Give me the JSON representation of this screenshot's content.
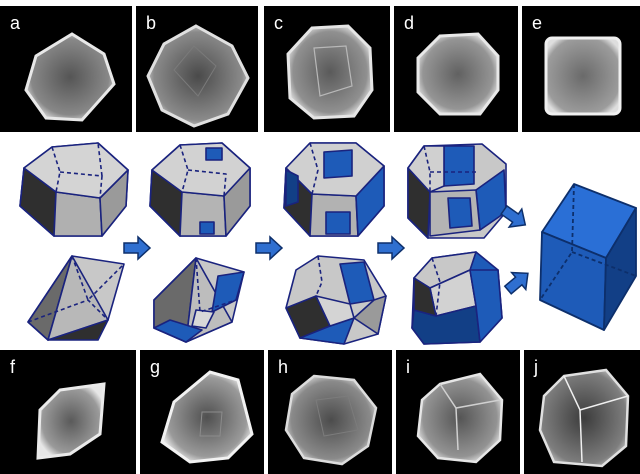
{
  "top_panels": [
    {
      "label": "a",
      "shape": "rhombic-dodecahedron particle"
    },
    {
      "label": "b",
      "shape": "rhombic-dodecahedron particle"
    },
    {
      "label": "c",
      "shape": "truncated particle"
    },
    {
      "label": "d",
      "shape": "rounded octagonal particle"
    },
    {
      "label": "e",
      "shape": "cube particle"
    }
  ],
  "bottom_panels": [
    {
      "label": "f",
      "shape": "octahedron particle"
    },
    {
      "label": "g",
      "shape": "truncated octahedron particle"
    },
    {
      "label": "h",
      "shape": "truncated particle"
    },
    {
      "label": "i",
      "shape": "truncated cube particle"
    },
    {
      "label": "j",
      "shape": "cube particle"
    }
  ],
  "colors": {
    "background": "#ffffff",
    "micrograph_bg": "#000000",
    "face_light": "#c8c8c8",
    "face_mid": "#9a9a9a",
    "face_dark": "#2f2f2f",
    "face_blue": "#1e5bb8",
    "face_blue_dark": "#123f86",
    "edge": "#1a237e",
    "arrow_fill": "#2f6fd0",
    "arrow_stroke": "#0d2f6b"
  },
  "arrow_icon": "right-arrow-icon"
}
